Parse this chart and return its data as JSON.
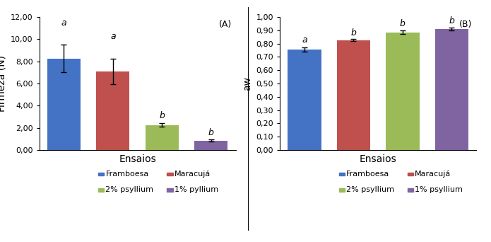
{
  "chart_A": {
    "title": "(A)",
    "ylabel": "Firmeza (N)",
    "xlabel": "Ensaios",
    "ylim": [
      0,
      12
    ],
    "yticks": [
      0.0,
      2.0,
      4.0,
      6.0,
      8.0,
      10.0,
      12.0
    ],
    "ytick_labels": [
      "0,00",
      "2,00",
      "4,00",
      "6,00",
      "8,00",
      "10,00",
      "12,00"
    ],
    "bars": [
      8.25,
      7.1,
      2.25,
      0.85
    ],
    "errors": [
      1.25,
      1.15,
      0.15,
      0.1
    ],
    "colors": [
      "#4472C4",
      "#C0504D",
      "#9BBB59",
      "#8064A2"
    ],
    "letters": [
      "a",
      "a",
      "b",
      "b"
    ],
    "letter_offsets": [
      1.55,
      1.55,
      0.28,
      0.22
    ],
    "legend_labels": [
      "Framboesa",
      "Maracujá",
      "2% psyllium",
      "1% pyllium"
    ]
  },
  "chart_B": {
    "title": "(B)",
    "ylabel": "aw",
    "xlabel": "Ensaios",
    "ylim": [
      0,
      1.0
    ],
    "yticks": [
      0.0,
      0.1,
      0.2,
      0.3,
      0.4,
      0.5,
      0.6,
      0.7,
      0.8,
      0.9,
      1.0
    ],
    "ytick_labels": [
      "0,00",
      "0,10",
      "0,20",
      "0,30",
      "0,40",
      "0,50",
      "0,60",
      "0,70",
      "0,80",
      "0,90",
      "1,00"
    ],
    "bars": [
      0.755,
      0.825,
      0.885,
      0.91
    ],
    "errors": [
      0.015,
      0.008,
      0.012,
      0.01
    ],
    "colors": [
      "#4472C4",
      "#C0504D",
      "#9BBB59",
      "#8064A2"
    ],
    "letters": [
      "a",
      "b",
      "b",
      "b"
    ],
    "letter_offsets": [
      0.022,
      0.014,
      0.018,
      0.014
    ],
    "legend_labels": [
      "Framboesa",
      "Maracujá",
      "2% psyllium",
      "1% psyllium"
    ]
  },
  "bar_width": 0.68,
  "background_color": "#FFFFFF"
}
